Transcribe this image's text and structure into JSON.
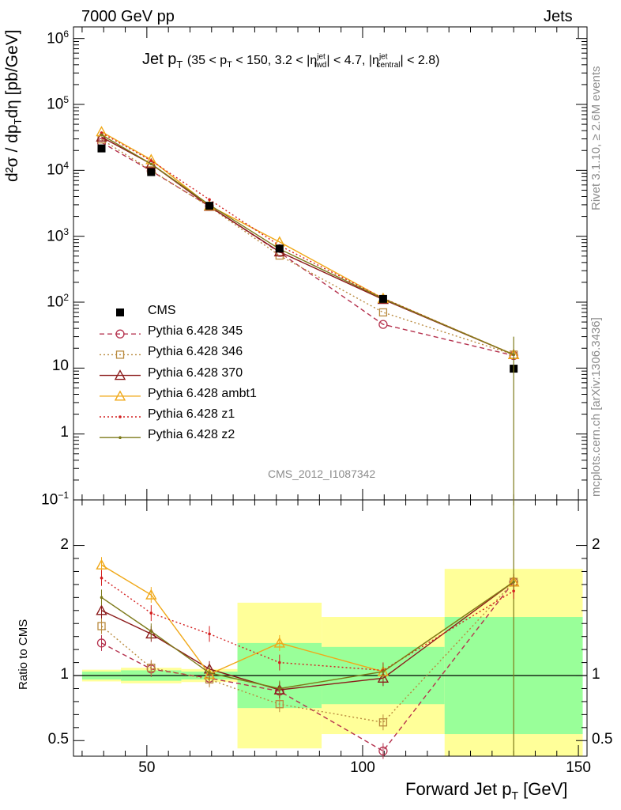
{
  "header": {
    "beam": "7000 GeV pp",
    "process": "Jets",
    "rivet": "Rivet 3.1.10, ≥ 2.6M events",
    "source": "mcplots.cern.ch [arXiv:1306.3436]",
    "analysis": "CMS_2012_I1087342"
  },
  "chart_data": [
    {
      "type": "scatter",
      "panel": "main",
      "title": "Jet p_T (35 < p_T < 150, 3.2 < |η_fwd^jet| < 4.7, |η_central^jet| < 2.8)",
      "ylabel": "d²σ / dp_T dη [pb/GeV]",
      "yscale": "log",
      "ylim": [
        0.1,
        1500000
      ],
      "xlim": [
        33,
        152
      ],
      "x": [
        39.5,
        51,
        64.5,
        80.75,
        104.75,
        135
      ],
      "data": {
        "name": "CMS",
        "values": [
          21500,
          9400,
          2900,
          650,
          112,
          9.8
        ],
        "x_err": [
          [
            35,
            44
          ],
          [
            44,
            58
          ],
          [
            58,
            71
          ],
          [
            71,
            90.5
          ],
          [
            90.5,
            119
          ],
          [
            119,
            151
          ]
        ]
      },
      "series": [
        {
          "name": "Pythia 6.428 345",
          "color": "#b5324e",
          "style": "dashed",
          "marker": "circle",
          "values": [
            26500,
            9800,
            2850,
            570,
            46,
            15.5
          ]
        },
        {
          "name": "Pythia 6.428 346",
          "color": "#b98a3e",
          "style": "dotted",
          "marker": "square",
          "values": [
            29500,
            10000,
            2800,
            510,
            70,
            16
          ]
        },
        {
          "name": "Pythia 6.428 370",
          "color": "#8b1a1a",
          "style": "solid",
          "marker": "triangle",
          "values": [
            32000,
            12500,
            2850,
            580,
            110,
            16
          ]
        },
        {
          "name": "Pythia 6.428 ambt1",
          "color": "#f0a818",
          "style": "solid",
          "marker": "triangle",
          "values": [
            38500,
            14500,
            2900,
            820,
            114,
            16
          ]
        },
        {
          "name": "Pythia 6.428 z1",
          "color": "#d42020",
          "style": "dotted",
          "marker": "dot",
          "values": [
            37000,
            14000,
            3600,
            720,
            115,
            16
          ]
        },
        {
          "name": "Pythia 6.428 z2",
          "color": "#7d7a1a",
          "style": "solid",
          "marker": "dot",
          "values": [
            34500,
            12500,
            3000,
            640,
            113,
            16
          ]
        }
      ]
    },
    {
      "type": "scatter",
      "panel": "ratio",
      "ylabel": "Ratio to CMS",
      "xlabel": "Forward Jet p_T [GeV]",
      "ylim": [
        0.38,
        2.35
      ],
      "xlim": [
        33,
        152
      ],
      "yticks": [
        "0.5",
        "1",
        "2"
      ],
      "xticks": [
        "50",
        "100",
        "150"
      ],
      "uncertainty_bands": {
        "x_edges": [
          35,
          44,
          58,
          71,
          90.5,
          119,
          151
        ],
        "stat": [
          0.03,
          0.04,
          0.03,
          0.25,
          0.22,
          0.45
        ],
        "stat_plus_syst": [
          0.045,
          0.06,
          0.05,
          0.56,
          0.45,
          0.82
        ]
      },
      "series": [
        {
          "name": "Pythia 6.428 345",
          "values": [
            1.25,
            1.05,
            0.98,
            0.88,
            0.42,
            1.72
          ]
        },
        {
          "name": "Pythia 6.428 346",
          "values": [
            1.38,
            1.06,
            0.97,
            0.78,
            0.64,
            1.72
          ]
        },
        {
          "name": "Pythia 6.428 370",
          "values": [
            1.5,
            1.32,
            1.05,
            0.89,
            0.98,
            1.72
          ]
        },
        {
          "name": "Pythia 6.428 ambt1",
          "values": [
            1.85,
            1.62,
            1.01,
            1.25,
            1.03,
            1.72
          ]
        },
        {
          "name": "Pythia 6.428 z1",
          "values": [
            1.75,
            1.48,
            1.32,
            1.1,
            1.04,
            1.65
          ]
        },
        {
          "name": "Pythia 6.428 z2",
          "values": [
            1.6,
            1.34,
            1.02,
            0.9,
            1.03,
            1.72
          ]
        }
      ]
    }
  ]
}
